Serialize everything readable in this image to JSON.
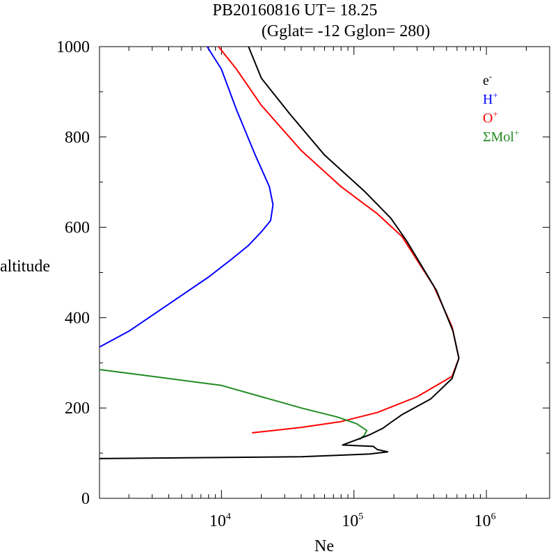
{
  "chart_data": {
    "type": "line",
    "title_line1": "PB20160816   UT=  18.25",
    "title_line2": "(Gglat= -12   Gglon=  280)",
    "xlabel": "Ne",
    "ylabel": "altitude",
    "xscale": "log",
    "xlim": [
      1200,
      3000000
    ],
    "ylim": [
      0,
      1000
    ],
    "x_tick_labels": [
      {
        "base": "10",
        "exp": "4",
        "value": 10000
      },
      {
        "base": "10",
        "exp": "5",
        "value": 100000
      },
      {
        "base": "10",
        "exp": "6",
        "value": 1000000
      }
    ],
    "y_ticks": [
      0,
      200,
      400,
      600,
      800,
      1000
    ],
    "y_tick_labels": [
      "0",
      "200",
      "400",
      "600",
      "800",
      "1000"
    ],
    "legend_placement": "top-right",
    "legend": [
      {
        "base": "e",
        "sup": "-",
        "color": "#000000"
      },
      {
        "base": "H",
        "sup": "+",
        "color": "#0000ff"
      },
      {
        "base": "O",
        "sup": "+",
        "color": "#ff0000"
      },
      {
        "base": "ΣMol",
        "sup": "+",
        "color": "#228b22"
      }
    ],
    "series": [
      {
        "color": "#0000ff",
        "points": [
          [
            1200,
            335
          ],
          [
            2000,
            370
          ],
          [
            4000,
            430
          ],
          [
            8000,
            490
          ],
          [
            12000,
            530
          ],
          [
            16000,
            560
          ],
          [
            20000,
            590
          ],
          [
            23500,
            615
          ],
          [
            24500,
            650
          ],
          [
            23000,
            690
          ],
          [
            18000,
            760
          ],
          [
            13000,
            860
          ],
          [
            10000,
            950
          ],
          [
            7800,
            1000
          ]
        ]
      },
      {
        "color": "#ff0000",
        "points": [
          [
            17000,
            145
          ],
          [
            40000,
            157
          ],
          [
            80000,
            170
          ],
          [
            150000,
            190
          ],
          [
            300000,
            225
          ],
          [
            550000,
            270
          ],
          [
            620000,
            310
          ],
          [
            550000,
            380
          ],
          [
            400000,
            470
          ],
          [
            230000,
            580
          ],
          [
            150000,
            630
          ],
          [
            80000,
            690
          ],
          [
            40000,
            770
          ],
          [
            20000,
            870
          ],
          [
            13000,
            950
          ],
          [
            9500,
            1000
          ]
        ]
      },
      {
        "color": "#228b22",
        "points": [
          [
            1200,
            285
          ],
          [
            3000,
            270
          ],
          [
            10000,
            250
          ],
          [
            40000,
            200
          ],
          [
            75000,
            180
          ],
          [
            105000,
            165
          ],
          [
            125000,
            150
          ],
          [
            120000,
            140
          ],
          [
            110000,
            130
          ]
        ]
      },
      {
        "color": "#000000",
        "points": [
          [
            1200,
            88
          ],
          [
            40000,
            92
          ],
          [
            130000,
            98
          ],
          [
            180000,
            103
          ],
          [
            150000,
            108
          ],
          [
            140000,
            115
          ],
          [
            82000,
            118
          ],
          [
            130000,
            140
          ],
          [
            165000,
            155
          ],
          [
            190000,
            168
          ],
          [
            230000,
            185
          ],
          [
            380000,
            220
          ],
          [
            550000,
            265
          ],
          [
            620000,
            310
          ],
          [
            560000,
            370
          ],
          [
            420000,
            460
          ],
          [
            250000,
            570
          ],
          [
            190000,
            620
          ],
          [
            120000,
            680
          ],
          [
            60000,
            760
          ],
          [
            33000,
            850
          ],
          [
            20000,
            930
          ],
          [
            16000,
            1000
          ]
        ]
      }
    ]
  }
}
